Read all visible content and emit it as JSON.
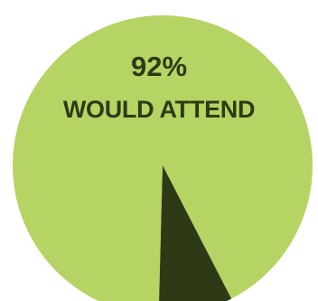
{
  "chart_data": {
    "type": "pie",
    "slices": [
      {
        "label": "WOULD ATTEND",
        "value": 92,
        "color": "#b5d463"
      },
      {
        "label": "",
        "value": 8,
        "color": "#2e3a16"
      }
    ],
    "annotation": {
      "value_text": "92%",
      "label_text": "WOULD ATTEND"
    }
  },
  "colors": {
    "background": "#ffffff",
    "accent_text": "#2e3a16"
  }
}
